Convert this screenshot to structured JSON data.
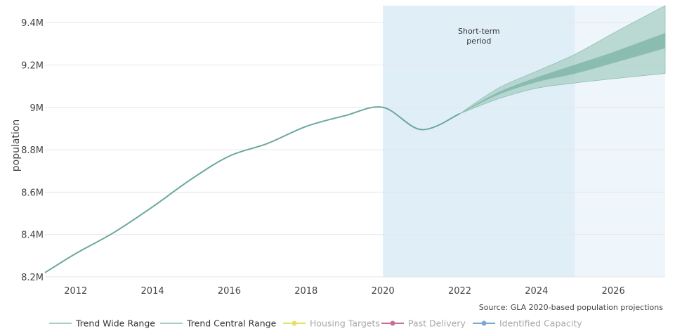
{
  "chart_data": {
    "type": "area",
    "ylabel": "population",
    "xlim": [
      2011.2,
      2027.35
    ],
    "ylim": [
      8.2,
      9.48
    ],
    "x_ticks": [
      2012,
      2014,
      2016,
      2018,
      2020,
      2022,
      2024,
      2026
    ],
    "x_tick_labels": [
      "2012",
      "2014",
      "2016",
      "2018",
      "2020",
      "2022",
      "2024",
      "2026"
    ],
    "y_ticks": [
      8.2,
      8.4,
      8.6,
      8.8,
      9.0,
      9.2,
      9.4
    ],
    "y_tick_labels": [
      "8.2M",
      "8.4M",
      "8.6M",
      "8.8M",
      "9M",
      "9.2M",
      "9.4M"
    ],
    "grid": true,
    "periods": [
      {
        "label": "Short-term period",
        "from": 2020,
        "to": 2025,
        "color": "#e0eff7"
      },
      {
        "label": "",
        "from": 2025,
        "to": 2027.35,
        "color": "#eef6fb"
      }
    ],
    "series": [
      {
        "name": "Population",
        "color": "#6aa89e",
        "x": [
          2011.2,
          2012,
          2013,
          2014,
          2015,
          2016,
          2017,
          2018,
          2019,
          2020,
          2021,
          2022
        ],
        "y": [
          8.22,
          8.31,
          8.41,
          8.53,
          8.66,
          8.77,
          8.83,
          8.91,
          8.96,
          9.0,
          8.895,
          8.97
        ]
      }
    ],
    "bands": [
      {
        "name": "Trend Wide Range",
        "color": "#a8cfc4",
        "x": [
          2022,
          2023,
          2024,
          2025,
          2026,
          2027.35
        ],
        "lower": [
          8.97,
          9.04,
          9.09,
          9.115,
          9.135,
          9.16
        ],
        "upper": [
          8.97,
          9.09,
          9.17,
          9.25,
          9.35,
          9.48
        ]
      },
      {
        "name": "Trend Central Range",
        "color": "#7fb4a8",
        "x": [
          2022,
          2023,
          2024,
          2025,
          2026,
          2027.35
        ],
        "lower": [
          8.97,
          9.06,
          9.12,
          9.16,
          9.21,
          9.28
        ],
        "upper": [
          8.97,
          9.07,
          9.14,
          9.2,
          9.26,
          9.35
        ]
      }
    ],
    "source": "Source: GLA 2020-based population projections",
    "legend": {
      "position": "bottom",
      "items": [
        {
          "label": "Trend Wide Range",
          "color": "#a8cfc4",
          "marker": "line",
          "active": true
        },
        {
          "label": "Trend Central Range",
          "color": "#a8cfc4",
          "marker": "line",
          "active": true
        },
        {
          "label": "Housing Targets",
          "color": "#e8e060",
          "marker": "line-dot",
          "active": false
        },
        {
          "label": "Past Delivery",
          "color": "#c4709a",
          "marker": "line-dot",
          "active": false
        },
        {
          "label": "Identified Capacity",
          "color": "#7fa7d6",
          "marker": "line-dot",
          "active": false
        }
      ]
    }
  }
}
